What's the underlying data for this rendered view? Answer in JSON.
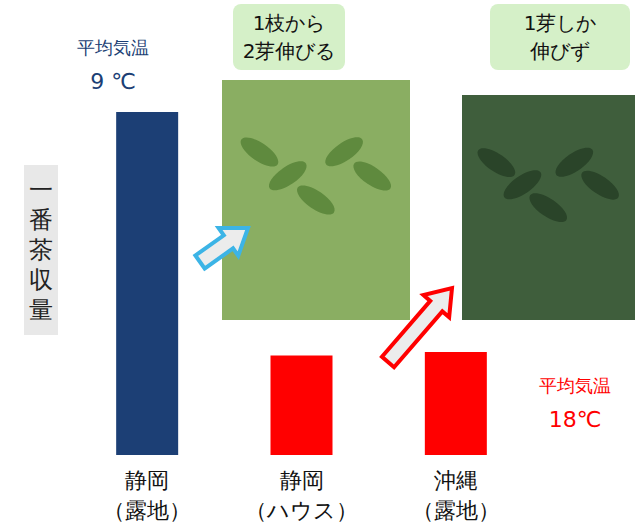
{
  "chart_data": {
    "type": "bar",
    "categories": [
      "静岡\n（露地）",
      "静岡\n（ハウス）",
      "沖縄\n（露地）"
    ],
    "values": [
      100,
      29,
      30
    ],
    "colors": [
      "#1c3f75",
      "#ff0000",
      "#ff0000"
    ],
    "ylabel": "一番茶収量",
    "ylim": [
      0,
      100
    ],
    "tick_labels": "x",
    "grid": false,
    "annotations": [
      {
        "category": "静岡\n（露地）",
        "text": "平均気温\n9 ℃"
      },
      {
        "category": "沖縄\n（露地）",
        "text": "平均気温\n18℃"
      }
    ],
    "photos": [
      {
        "category": "静岡\n（露地）",
        "caption": "1枝から\n2芽伸びる"
      },
      {
        "category": "沖縄\n（露地）",
        "caption": "1芽しか\n伸びず"
      }
    ]
  }
}
